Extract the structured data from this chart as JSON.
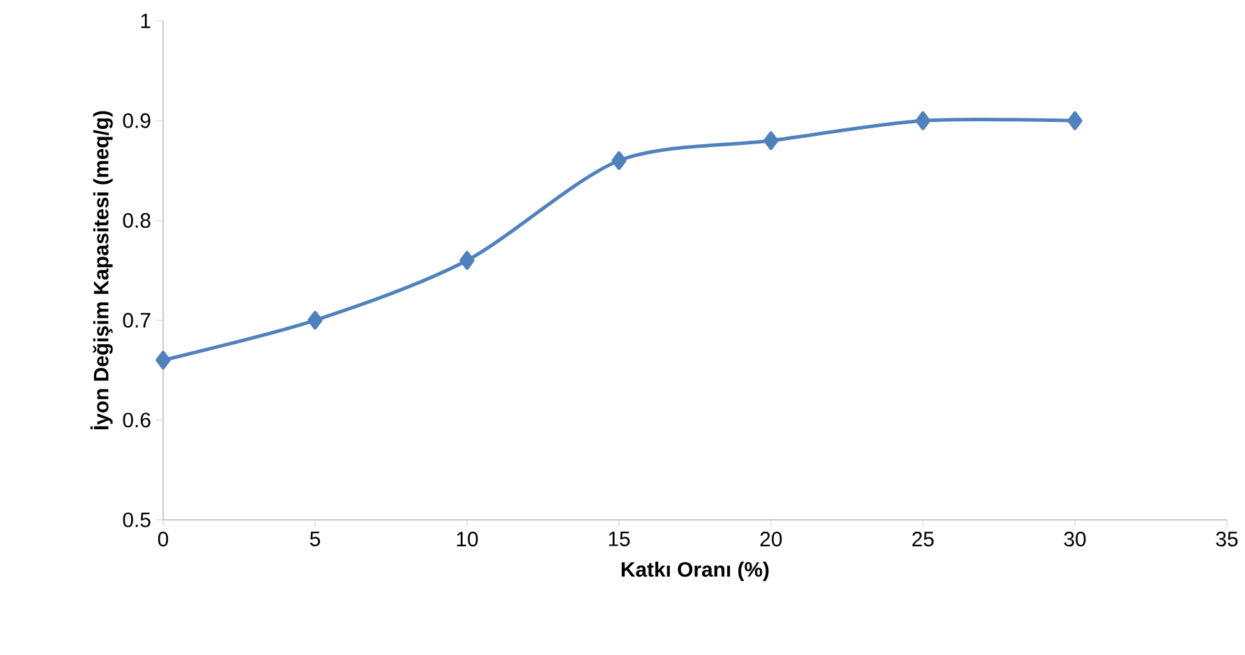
{
  "chart_data": {
    "type": "line",
    "xlabel": "Katkı Oranı (%)",
    "ylabel": "İyon Değişim Kapasitesi (meq/g)",
    "x": [
      0,
      5,
      10,
      15,
      20,
      25,
      30
    ],
    "series": [
      {
        "color": "#4f81bd",
        "values": [
          0.66,
          0.7,
          0.76,
          0.86,
          0.88,
          0.9,
          0.9
        ]
      }
    ],
    "xlim": [
      0,
      35
    ],
    "xticks": [
      0,
      5,
      10,
      15,
      20,
      25,
      30,
      35
    ],
    "ylim": [
      0.5,
      1
    ],
    "yticks": [
      0.5,
      0.6,
      0.7,
      0.8,
      0.9,
      1
    ],
    "grid": false,
    "marker": "diamond",
    "line_style": "solid"
  }
}
